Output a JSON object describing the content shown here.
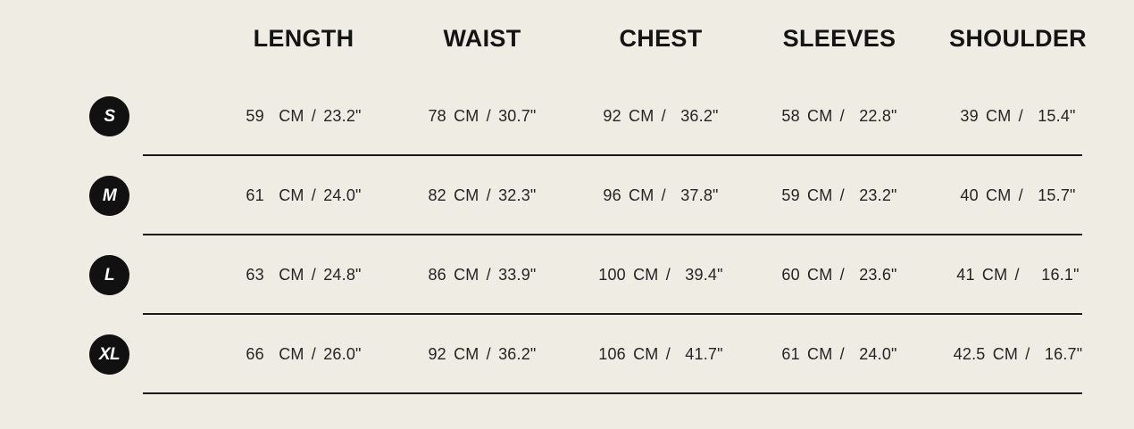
{
  "table": {
    "background_color": "#efece4",
    "line_color": "#1a1a1a",
    "badge_color": "#111111",
    "badge_text_color": "#ffffff",
    "columns": [
      "LENGTH",
      "WAIST",
      "CHEST",
      "SLEEVES",
      "SHOULDER"
    ],
    "rows": [
      {
        "size": "S",
        "cells": [
          "59  CM / 23.2\"",
          "78 CM / 30.7\"",
          "92 CM /  36.2\"",
          "58 CM /  22.8\"",
          "39 CM /  15.4\""
        ]
      },
      {
        "size": "M",
        "cells": [
          "61  CM / 24.0\"",
          "82 CM / 32.3\"",
          "96 CM /  37.8\"",
          "59 CM /  23.2\"",
          "40 CM /  15.7\""
        ]
      },
      {
        "size": "L",
        "cells": [
          "63  CM / 24.8\"",
          "86 CM / 33.9\"",
          "100 CM /  39.4\"",
          "60 CM /  23.6\"",
          "41 CM /   16.1\""
        ]
      },
      {
        "size": "XL",
        "cells": [
          "66  CM / 26.0\"",
          "92 CM / 36.2\"",
          "106 CM /  41.7\"",
          "61 CM /  24.0\"",
          "42.5 CM /  16.7\""
        ]
      }
    ]
  },
  "chart_data": {
    "type": "table",
    "title": "Garment size chart",
    "columns": [
      "LENGTH",
      "WAIST",
      "CHEST",
      "SLEEVES",
      "SHOULDER"
    ],
    "row_labels": [
      "S",
      "M",
      "L",
      "XL"
    ],
    "values_cm": [
      [
        59,
        78,
        92,
        58,
        39
      ],
      [
        61,
        82,
        96,
        59,
        40
      ],
      [
        63,
        86,
        100,
        60,
        41
      ],
      [
        66,
        92,
        106,
        61,
        42.5
      ]
    ],
    "values_inches": [
      [
        23.2,
        30.7,
        36.2,
        22.8,
        15.4
      ],
      [
        24.0,
        32.3,
        37.8,
        23.2,
        15.7
      ],
      [
        24.8,
        33.9,
        39.4,
        23.6,
        16.1
      ],
      [
        26.0,
        36.2,
        41.7,
        24.0,
        16.7
      ]
    ],
    "units": [
      "CM",
      "inches"
    ],
    "grid": "horizontal-lines-under-data-rows"
  }
}
